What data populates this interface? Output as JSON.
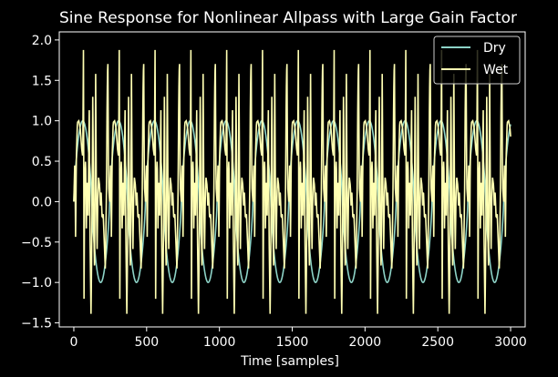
{
  "chart_data": {
    "type": "line",
    "title": "Sine Response for Nonlinear Allpass with Large Gain Factor",
    "xlabel": "Time [samples]",
    "ylabel": "",
    "xlim": [
      -100,
      3100
    ],
    "ylim": [
      -1.55,
      2.1
    ],
    "xticks": [
      0,
      500,
      1000,
      1500,
      2000,
      2500,
      3000
    ],
    "yticks": [
      -1.5,
      -1.0,
      -0.5,
      0.0,
      0.5,
      1.0,
      1.5,
      2.0
    ],
    "xtick_labels": [
      "0",
      "500",
      "1000",
      "1500",
      "2000",
      "2500",
      "3000"
    ],
    "ytick_labels": [
      "−1.5",
      "−1.0",
      "−0.5",
      "0.0",
      "0.5",
      "1.0",
      "1.5",
      "2.0"
    ],
    "grid": false,
    "legend_position": "top-right",
    "background": "#000000",
    "foreground": "#ffffff",
    "series": [
      {
        "name": "Dry",
        "color": "#8dd3c7",
        "period_samples": 246,
        "x_range": [
          0,
          3000
        ],
        "description_values": {
          "min": -1.0,
          "max": 1.0
        }
      },
      {
        "name": "Wet",
        "color": "#ffffb3",
        "period_samples": 246,
        "x_range": [
          0,
          3000
        ],
        "description_values": {
          "min": -1.4,
          "max": 2.0
        }
      }
    ]
  }
}
